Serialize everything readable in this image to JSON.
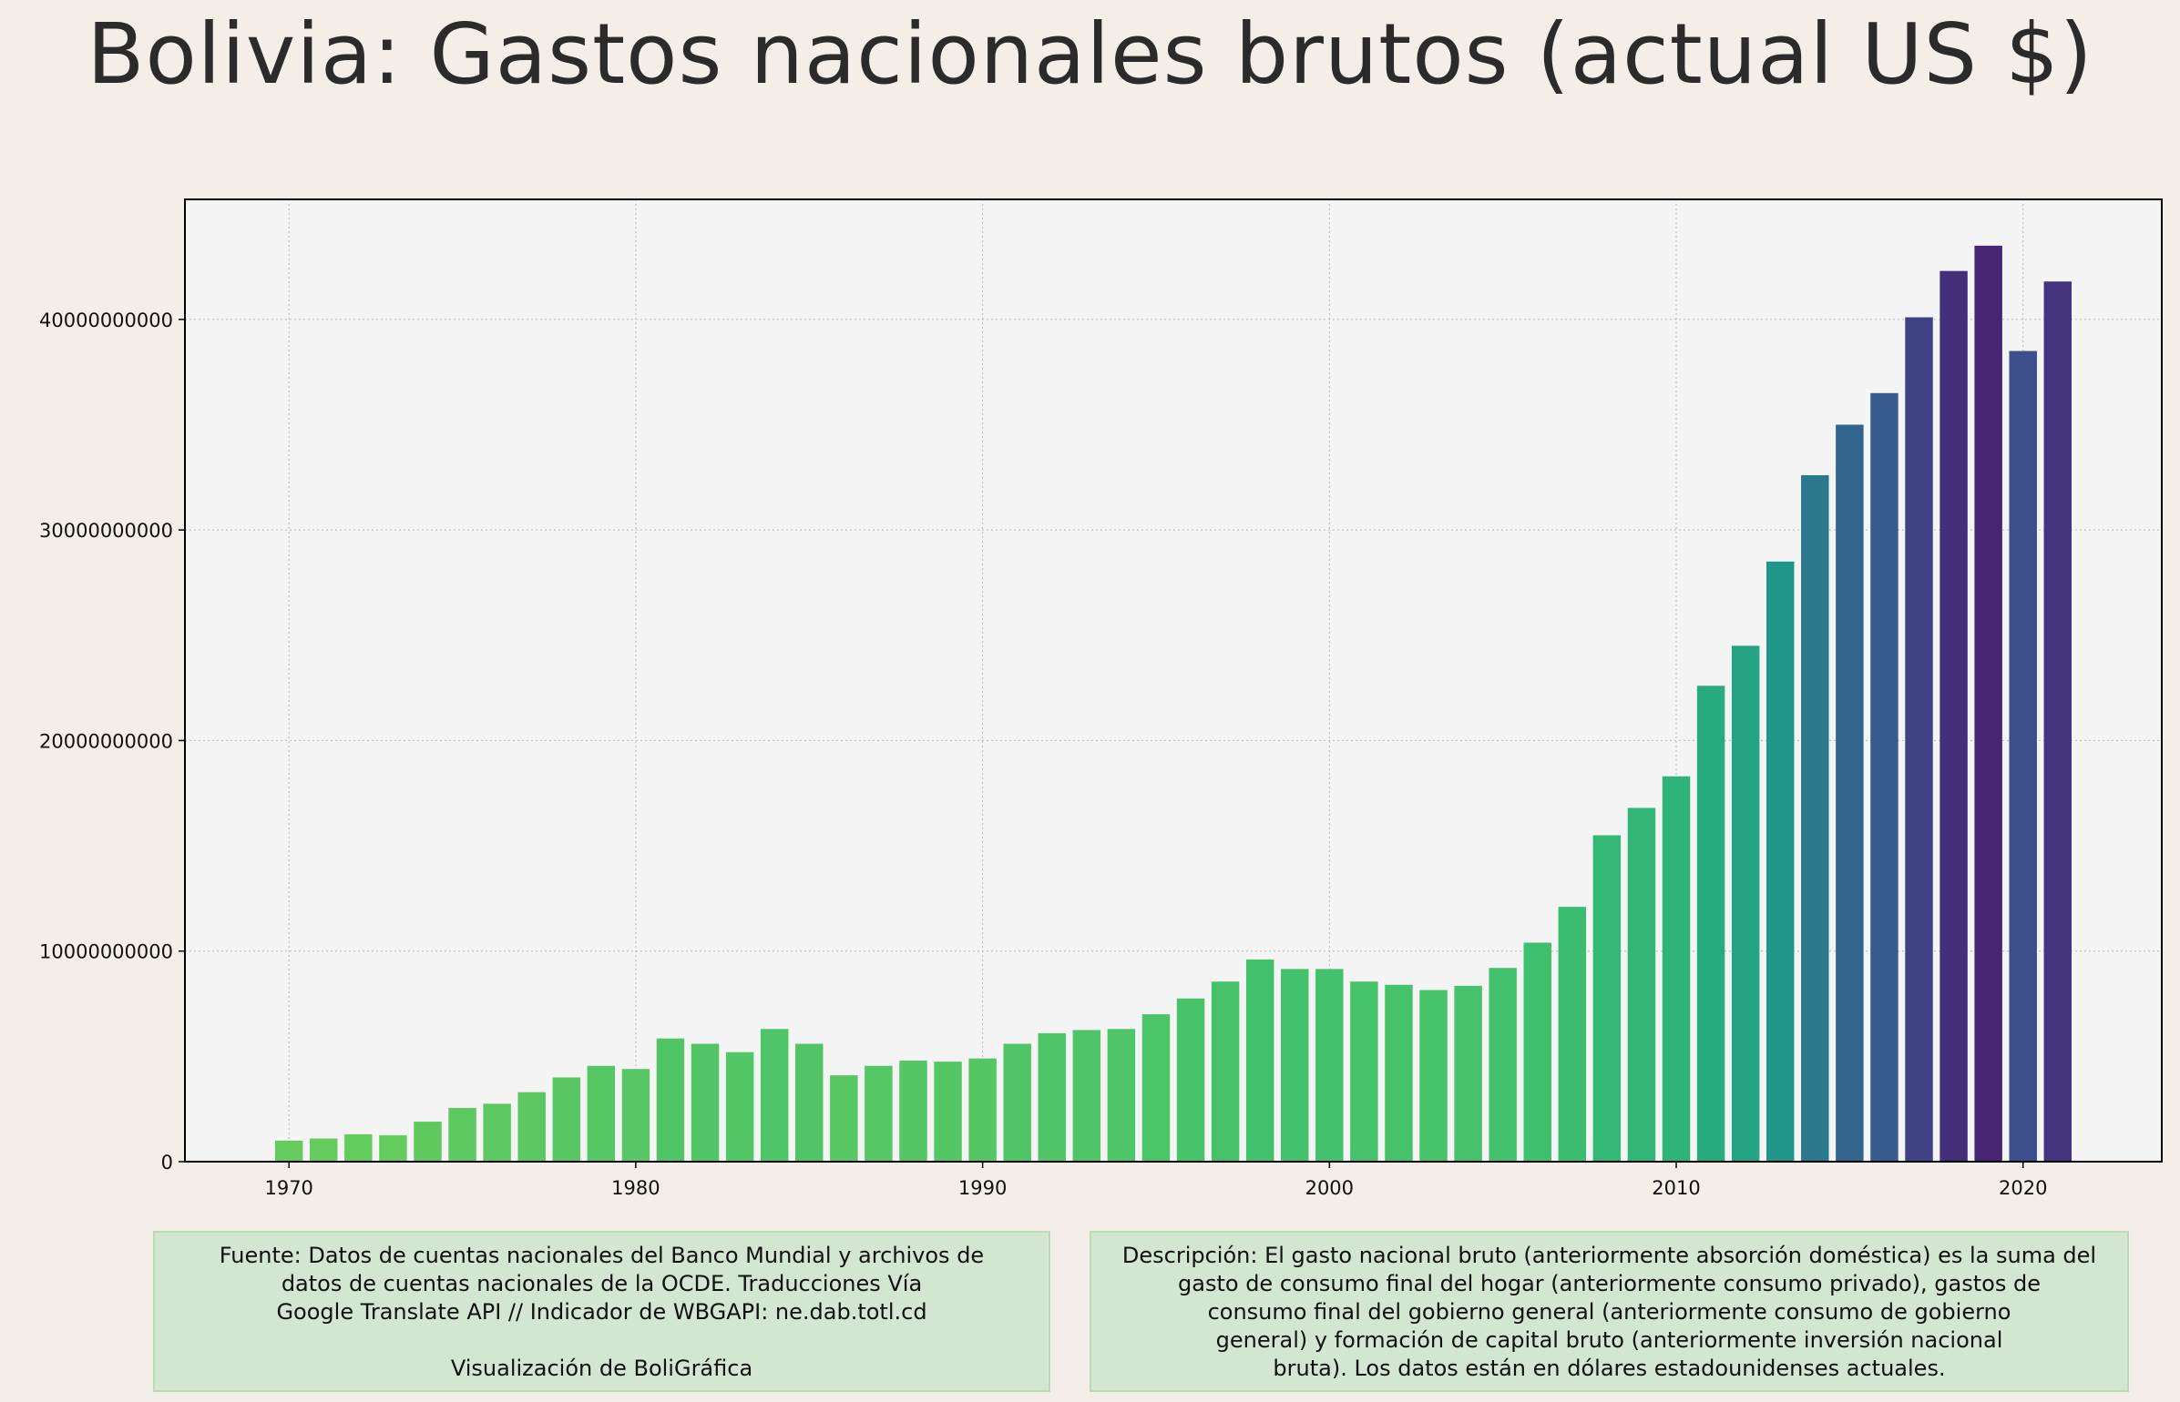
{
  "title": "Bolivia:  Gastos nacionales brutos (actual US $)",
  "chart_data": {
    "type": "bar",
    "title": "Bolivia:  Gastos nacionales brutos (actual US $)",
    "xlabel": "",
    "ylabel": "",
    "x": [
      1970,
      1971,
      1972,
      1973,
      1974,
      1975,
      1976,
      1977,
      1978,
      1979,
      1980,
      1981,
      1982,
      1983,
      1984,
      1985,
      1986,
      1987,
      1988,
      1989,
      1990,
      1991,
      1992,
      1993,
      1994,
      1995,
      1996,
      1997,
      1998,
      1999,
      2000,
      2001,
      2002,
      2003,
      2004,
      2005,
      2006,
      2007,
      2008,
      2009,
      2010,
      2011,
      2012,
      2013,
      2014,
      2015,
      2016,
      2017,
      2018,
      2019,
      2020,
      2021
    ],
    "values": [
      1000000000,
      1100000000,
      1300000000,
      1250000000,
      1900000000,
      2550000000,
      2750000000,
      3300000000,
      4000000000,
      4550000000,
      4400000000,
      5850000000,
      5600000000,
      5200000000,
      6300000000,
      5600000000,
      4100000000,
      4550000000,
      4800000000,
      4750000000,
      4900000000,
      5600000000,
      6100000000,
      6250000000,
      6300000000,
      7000000000,
      7750000000,
      8550000000,
      9600000000,
      9150000000,
      9150000000,
      8550000000,
      8400000000,
      8150000000,
      8350000000,
      9200000000,
      10400000000,
      12100000000,
      15500000000,
      16800000000,
      18300000000,
      22600000000,
      24500000000,
      28500000000,
      32600000000,
      35000000000,
      36500000000,
      40100000000,
      42300000000,
      43500000000,
      38500000000,
      41800000000
    ],
    "xlim": [
      1967,
      2024
    ],
    "ylim": [
      0,
      45700000000
    ],
    "xticks": [
      1970,
      1980,
      1990,
      2000,
      2010,
      2020
    ],
    "xtick_labels": [
      "1970",
      "1980",
      "1990",
      "2000",
      "2010",
      "2020"
    ],
    "yticks": [
      0,
      10000000000,
      20000000000,
      30000000000,
      40000000000
    ],
    "ytick_labels": [
      "0",
      "10000000000",
      "20000000000",
      "30000000000",
      "40000000000"
    ],
    "grid": true,
    "colormap": "viridis (light green early years to dark purple recent years)",
    "colors": {
      "early": "#6ccd5a",
      "mid": "#20a386",
      "late": "#482475"
    }
  },
  "notes": {
    "source": "Fuente: Datos de cuentas nacionales del Banco Mundial y archivos de\ndatos de cuentas nacionales de la OCDE. Traducciones Vía\nGoogle Translate API // Indicador de WBGAPI: ne.dab.totl.cd\n\nVisualización de BoliGráfica",
    "description": "Descripción: El gasto nacional bruto (anteriormente absorción doméstica) es la suma del\ngasto de consumo final del hogar (anteriormente consumo privado), gastos de\nconsumo final del gobierno general (anteriormente consumo de gobierno\ngeneral) y formación de capital bruto (anteriormente inversión nacional\nbruta). Los datos están en dólares estadounidenses actuales."
  }
}
